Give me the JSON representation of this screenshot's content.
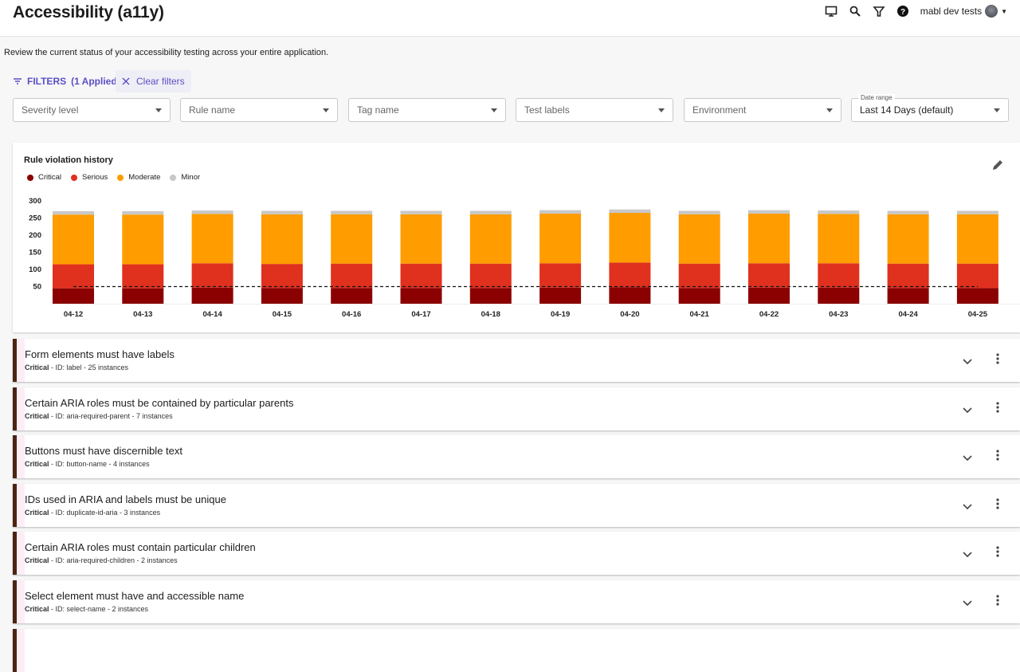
{
  "header": {
    "title": "Accessibility (a11y)",
    "user": "mabl dev tests",
    "icons": [
      "monitor-icon",
      "search-icon",
      "filter-icon",
      "help-icon"
    ]
  },
  "description": "Review the current status of your accessibility testing across your entire application.",
  "filters": {
    "label": "FILTERS",
    "applied": "(1 Applied)",
    "clear": "Clear filters",
    "selects": [
      {
        "placeholder": "Severity level"
      },
      {
        "placeholder": "Rule name"
      },
      {
        "placeholder": "Tag name"
      },
      {
        "placeholder": "Test labels"
      },
      {
        "placeholder": "Environment"
      },
      {
        "label": "Date range",
        "value": "Last 14 Days (default)"
      }
    ]
  },
  "chart_data": {
    "type": "bar",
    "stacked": true,
    "title": "Rule violation history",
    "categories": [
      "04-12",
      "04-13",
      "04-14",
      "04-15",
      "04-16",
      "04-17",
      "04-18",
      "04-19",
      "04-20",
      "04-21",
      "04-22",
      "04-23",
      "04-24",
      "04-25"
    ],
    "yticks": [
      50,
      100,
      150,
      200,
      250,
      300
    ],
    "ylim": [
      0,
      300
    ],
    "threshold": 50,
    "series": [
      {
        "name": "Critical",
        "color": "#8b0000",
        "values": [
          45,
          45,
          47,
          46,
          46,
          46,
          46,
          47,
          48,
          46,
          47,
          47,
          46,
          46
        ]
      },
      {
        "name": "Serious",
        "color": "#e0301e",
        "values": [
          70,
          70,
          71,
          70,
          71,
          71,
          71,
          71,
          72,
          71,
          71,
          71,
          71,
          71
        ]
      },
      {
        "name": "Moderate",
        "color": "#ff9c00",
        "values": [
          145,
          145,
          144,
          145,
          144,
          144,
          144,
          145,
          145,
          144,
          145,
          144,
          144,
          144
        ]
      },
      {
        "name": "Minor",
        "color": "#c8c8c8",
        "values": [
          10,
          10,
          10,
          10,
          10,
          10,
          10,
          10,
          10,
          10,
          10,
          10,
          10,
          10
        ]
      }
    ],
    "legend": "top-left",
    "grid": false
  },
  "rules": [
    {
      "title": "Form elements must have labels",
      "severity": "Critical",
      "meta": " - ID: label - 25 instances"
    },
    {
      "title": "Certain ARIA roles must be contained by particular parents",
      "severity": "Critical",
      "meta": " - ID: aria-required-parent - 7 instances"
    },
    {
      "title": "Buttons must have discernible text",
      "severity": "Critical",
      "meta": " - ID: button-name - 4 instances"
    },
    {
      "title": "IDs used in ARIA and labels must be unique",
      "severity": "Critical",
      "meta": " - ID: duplicate-id-aria - 3 instances"
    },
    {
      "title": "Certain ARIA roles must contain particular children",
      "severity": "Critical",
      "meta": " - ID: aria-required-children - 2 instances"
    },
    {
      "title": "Select element must have and accessible name",
      "severity": "Critical",
      "meta": " - ID: select-name - 2 instances"
    }
  ]
}
